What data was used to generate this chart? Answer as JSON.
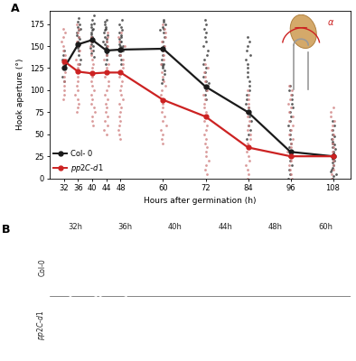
{
  "col0_means": [
    [
      32,
      125
    ],
    [
      36,
      152
    ],
    [
      40,
      157
    ],
    [
      44,
      145
    ],
    [
      48,
      146
    ],
    [
      60,
      147
    ],
    [
      72,
      104
    ],
    [
      84,
      75
    ],
    [
      96,
      30
    ],
    [
      108,
      25
    ]
  ],
  "pp2cd1_means": [
    [
      32,
      133
    ],
    [
      36,
      121
    ],
    [
      40,
      119
    ],
    [
      44,
      120
    ],
    [
      48,
      120
    ],
    [
      60,
      89
    ],
    [
      72,
      70
    ],
    [
      84,
      35
    ],
    [
      96,
      25
    ],
    [
      108,
      25
    ]
  ],
  "col0_scatter": {
    "32": [
      125,
      115,
      135,
      140,
      130,
      145,
      110
    ],
    "36": [
      155,
      160,
      150,
      165,
      170,
      175,
      140,
      148,
      158,
      162,
      145,
      152,
      168,
      172,
      178,
      182,
      130,
      135
    ],
    "40": [
      160,
      155,
      150,
      165,
      170,
      175,
      180,
      145,
      148,
      152,
      158,
      160,
      163,
      168,
      172,
      176,
      142,
      138,
      185
    ],
    "44": [
      140,
      145,
      148,
      150,
      152,
      155,
      158,
      130,
      135,
      145,
      148,
      155,
      160,
      162,
      165,
      170,
      175,
      180,
      142,
      168,
      172,
      178
    ],
    "48": [
      140,
      145,
      148,
      150,
      152,
      155,
      130,
      135,
      140,
      145,
      148,
      150,
      155,
      160,
      165,
      175,
      180,
      168,
      172,
      162,
      158
    ],
    "60": [
      145,
      150,
      155,
      160,
      165,
      170,
      130,
      135,
      140,
      108,
      112,
      118,
      122,
      125,
      128,
      130,
      168,
      172,
      175,
      180,
      178
    ],
    "72": [
      100,
      105,
      108,
      110,
      115,
      120,
      125,
      130,
      135,
      140,
      145,
      150,
      155,
      160,
      165,
      170,
      90,
      95,
      175,
      180
    ],
    "84": [
      60,
      65,
      70,
      75,
      80,
      85,
      90,
      95,
      100,
      105,
      110,
      115,
      120,
      125,
      130,
      135,
      140,
      145,
      150,
      155,
      50,
      55,
      45,
      160
    ],
    "96": [
      0,
      5,
      10,
      15,
      20,
      25,
      30,
      35,
      40,
      45,
      50,
      55,
      60,
      65,
      70,
      75,
      80,
      85,
      90,
      95,
      100,
      105
    ],
    "108": [
      0,
      5,
      10,
      15,
      20,
      25,
      30,
      35,
      40,
      45,
      50,
      55,
      60,
      65,
      3,
      8,
      12,
      18,
      22,
      28,
      33,
      38,
      42,
      48
    ]
  },
  "pp2cd1_scatter": {
    "32": [
      130,
      135,
      125,
      140,
      145,
      120,
      115,
      110,
      90,
      95,
      100,
      105,
      150,
      155,
      160,
      165,
      170
    ],
    "36": [
      120,
      125,
      130,
      115,
      110,
      105,
      100,
      95,
      90,
      85,
      80,
      75,
      145,
      150,
      155,
      160,
      165,
      170,
      175,
      130,
      135
    ],
    "40": [
      115,
      120,
      125,
      110,
      105,
      100,
      95,
      90,
      85,
      80,
      75,
      70,
      65,
      60,
      130,
      135,
      140,
      145,
      150,
      155,
      160
    ],
    "44": [
      115,
      120,
      125,
      110,
      105,
      100,
      95,
      90,
      85,
      80,
      75,
      70,
      65,
      60,
      130,
      135,
      140,
      145,
      150,
      155,
      160,
      165,
      55,
      50
    ],
    "48": [
      115,
      120,
      125,
      110,
      105,
      100,
      95,
      90,
      85,
      80,
      75,
      70,
      65,
      60,
      55,
      130,
      135,
      140,
      145,
      150,
      155,
      160,
      165,
      50,
      45
    ],
    "60": [
      85,
      90,
      95,
      100,
      105,
      110,
      115,
      120,
      70,
      75,
      80,
      50,
      55,
      60,
      65,
      130,
      135,
      140,
      145,
      150,
      155,
      160,
      165,
      170,
      175,
      45,
      40
    ],
    "72": [
      60,
      65,
      70,
      75,
      80,
      85,
      90,
      95,
      100,
      105,
      45,
      50,
      55,
      40,
      35,
      30,
      25,
      20,
      15,
      110,
      115,
      120,
      125,
      130,
      10,
      5
    ],
    "84": [
      25,
      30,
      35,
      40,
      45,
      50,
      55,
      20,
      15,
      10,
      5,
      0,
      60,
      65,
      70,
      75,
      80,
      85,
      90,
      95,
      100
    ],
    "96": [
      20,
      25,
      30,
      35,
      40,
      45,
      15,
      10,
      5,
      0,
      50,
      55,
      60,
      65,
      70,
      75,
      80,
      85,
      90,
      95,
      100,
      105
    ],
    "108": [
      20,
      25,
      30,
      35,
      40,
      45,
      50,
      55,
      60,
      65,
      70,
      15,
      10,
      5,
      0,
      75,
      80
    ]
  },
  "col0_color": "#1a1a1a",
  "pp2cd1_color": "#cc2222",
  "col0_scatter_color": "#333333",
  "pp2cd1_scatter_color": "#d08080",
  "xticks": [
    32,
    36,
    40,
    44,
    48,
    60,
    72,
    84,
    96,
    108
  ],
  "yticks": [
    0,
    25,
    50,
    75,
    100,
    125,
    150,
    175
  ],
  "ylabel": "Hook aperture (°)",
  "xlabel": "Hours after germination (h)",
  "panel_a_label": "A",
  "panel_b_label": "B",
  "ylim": [
    0,
    190
  ],
  "xlim": [
    28,
    113
  ],
  "time_labels_b": [
    "32h",
    "36h",
    "40h",
    "44h",
    "48h",
    "60h"
  ]
}
